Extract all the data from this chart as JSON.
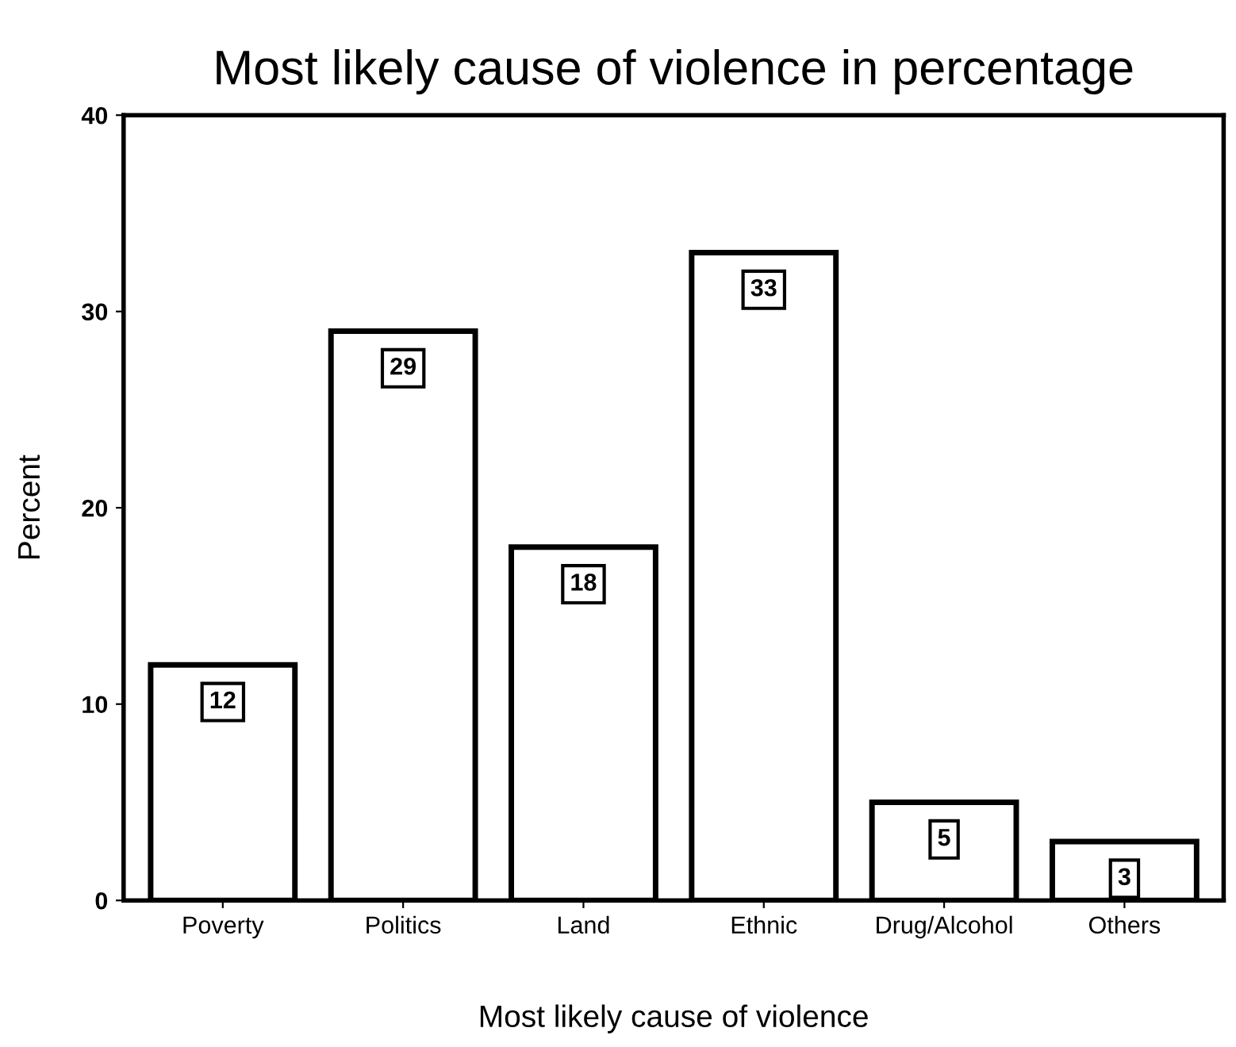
{
  "chart_data": {
    "type": "bar",
    "title": "Most likely cause of violence in percentage",
    "xlabel": "Most likely cause of violence",
    "ylabel": "Percent",
    "categories": [
      "Poverty",
      "Politics",
      "Land",
      "Ethnic",
      "Drug/Alcohol",
      "Others"
    ],
    "values": [
      12,
      29,
      18,
      33,
      5,
      3
    ],
    "color": "#ffffff",
    "ylim": [
      0,
      40
    ],
    "yticks": [
      0,
      10,
      20,
      30,
      40
    ],
    "grid": false,
    "data_labels": true
  }
}
